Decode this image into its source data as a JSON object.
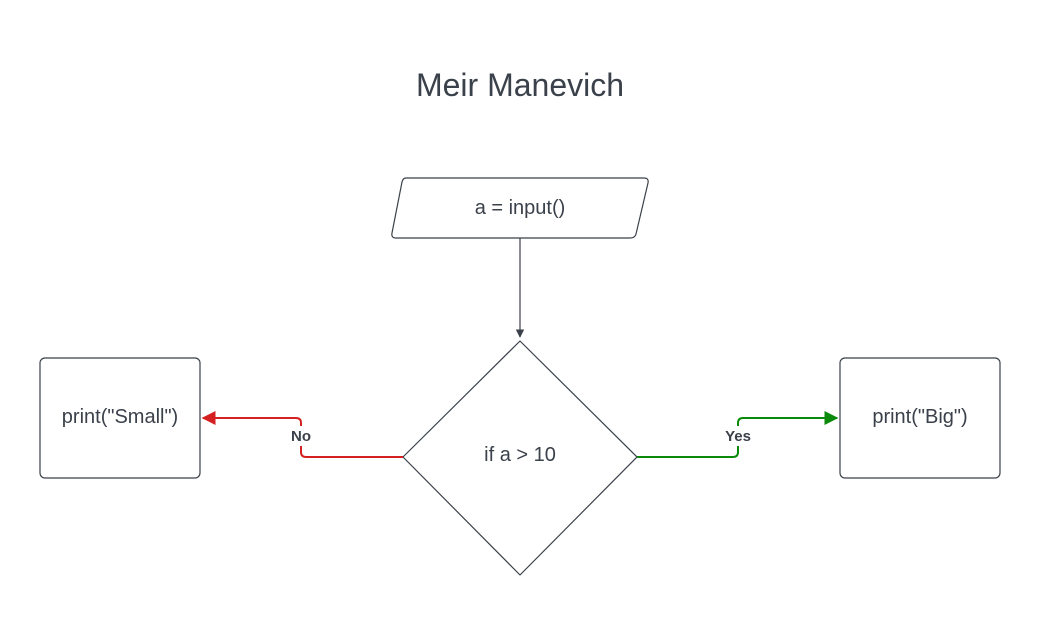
{
  "title": "Meir Manevich",
  "nodes": {
    "input": {
      "shape": "parallelogram",
      "label": "a = input()"
    },
    "decision": {
      "shape": "diamond",
      "label": "if a > 10"
    },
    "small": {
      "shape": "rounded-rectangle",
      "label": "print(\"Small\")"
    },
    "big": {
      "shape": "rounded-rectangle",
      "label": "print(\"Big\")"
    }
  },
  "edges": {
    "input_to_decision": {
      "from": "input",
      "to": "decision",
      "label": ""
    },
    "no": {
      "from": "decision",
      "to": "small",
      "label": "No"
    },
    "yes": {
      "from": "decision",
      "to": "big",
      "label": "Yes"
    }
  },
  "colors": {
    "text": "#3a414a",
    "stroke": "#3a414a",
    "no_edge": "#d42020",
    "yes_edge": "#0a8a0a"
  }
}
